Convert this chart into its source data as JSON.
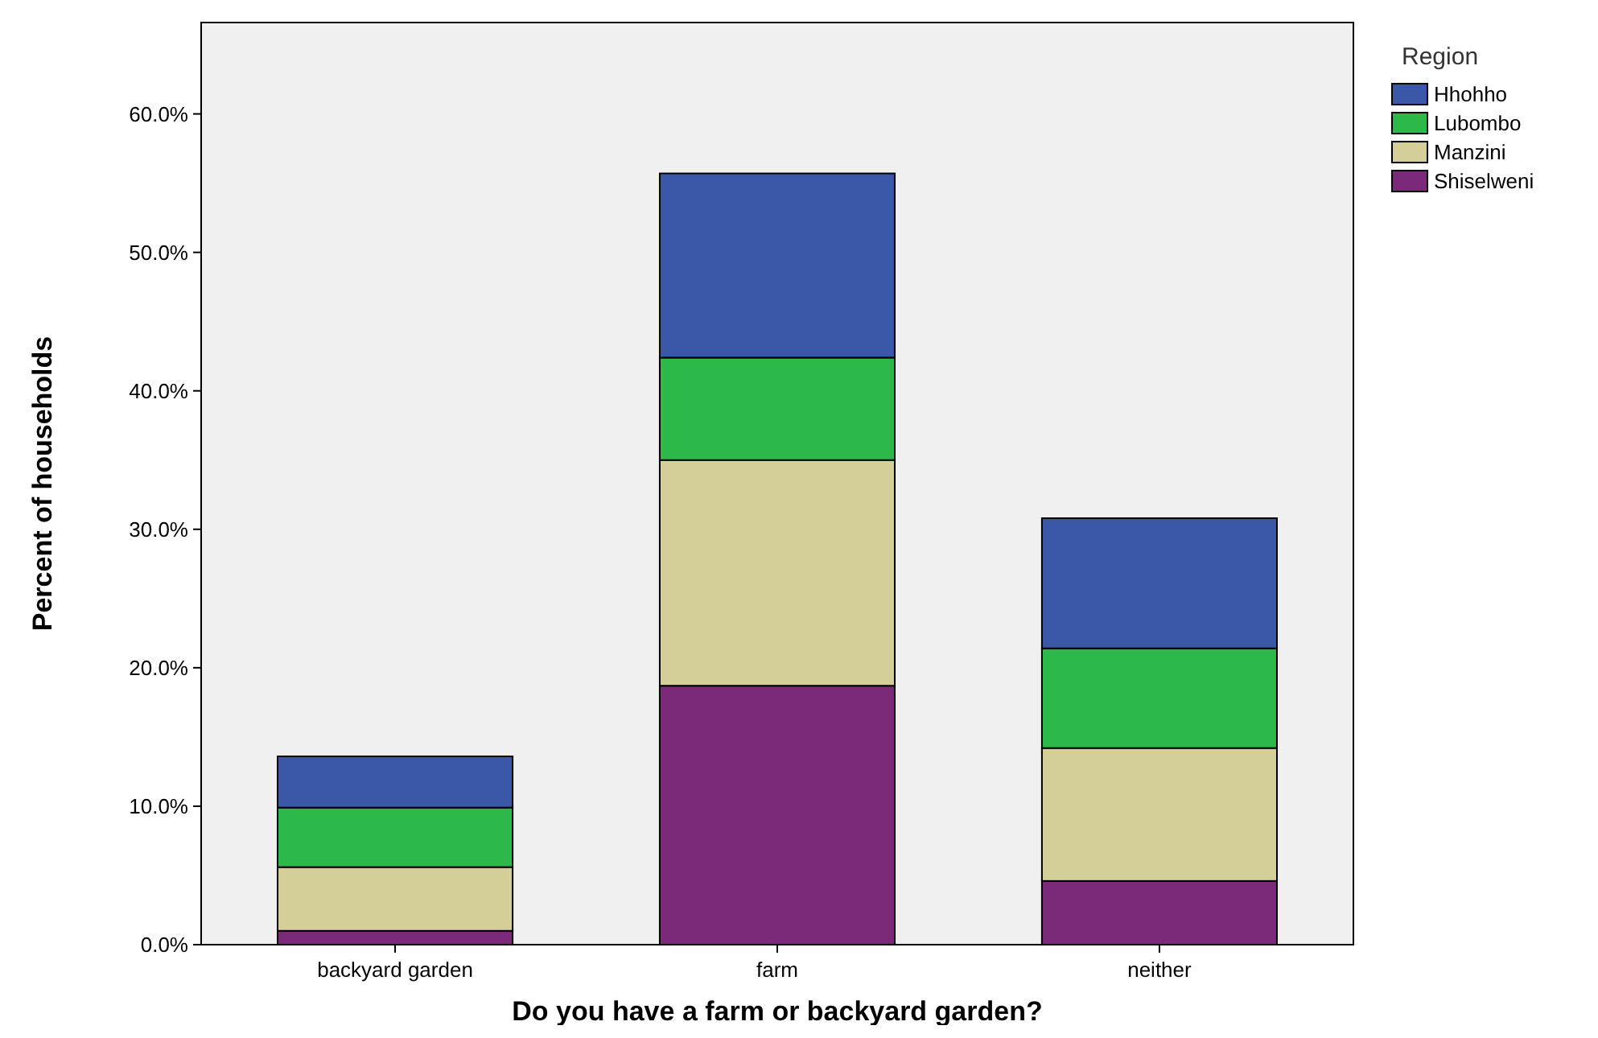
{
  "chart_data": {
    "type": "bar",
    "stacked": true,
    "xlabel": "Do you have a farm or backyard garden?",
    "ylabel": "Percent of households",
    "legend_title": "Region",
    "legend": "top right",
    "grid": false,
    "categories": [
      "backyard garden",
      "farm",
      "neither"
    ],
    "ylim": [
      0,
      66.6
    ],
    "yticks": [
      {
        "value": 0,
        "label": "0.0%"
      },
      {
        "value": 10,
        "label": "10.0%"
      },
      {
        "value": 20,
        "label": "20.0%"
      },
      {
        "value": 30,
        "label": "30.0%"
      },
      {
        "value": 40,
        "label": "40.0%"
      },
      {
        "value": 50,
        "label": "50.0%"
      },
      {
        "value": 60,
        "label": "60.0%"
      }
    ],
    "series": [
      {
        "name": "Shiselweni",
        "color": "#7b2a7a",
        "values": [
          1.0,
          18.7,
          4.6
        ]
      },
      {
        "name": "Manzini",
        "color": "#d4cf98",
        "values": [
          4.6,
          16.3,
          9.6
        ]
      },
      {
        "name": "Lubombo",
        "color": "#2db84a",
        "values": [
          4.3,
          7.4,
          7.2
        ]
      },
      {
        "name": "Hhohho",
        "color": "#3b57a8",
        "values": [
          3.7,
          13.3,
          9.4
        ]
      }
    ]
  }
}
